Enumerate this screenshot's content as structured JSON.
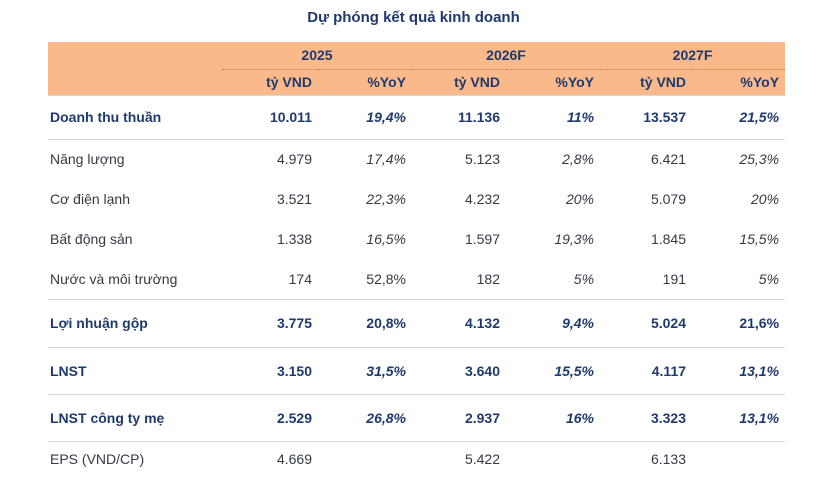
{
  "title": "Dự phóng kết quả kinh doanh",
  "header": {
    "years": [
      "2025",
      "2026F",
      "2027F"
    ],
    "units": [
      "tỷ VND",
      "%YoY",
      "tỷ VND",
      "%YoY",
      "tỷ VND",
      "%YoY"
    ]
  },
  "rows": [
    {
      "label": "Doanh thu thuần",
      "cells": [
        "10.011",
        "19,4%",
        "11.136",
        "11%",
        "13.537",
        "21,5%"
      ]
    },
    {
      "label": "Năng lượng",
      "cells": [
        "4.979",
        "17,4%",
        "5.123",
        "2,8%",
        "6.421",
        "25,3%"
      ]
    },
    {
      "label": "Cơ điện lạnh",
      "cells": [
        "3.521",
        "22,3%",
        "4.232",
        "20%",
        "5.079",
        "20%"
      ]
    },
    {
      "label": "Bất động sản",
      "cells": [
        "1.338",
        "16,5%",
        "1.597",
        "19,3%",
        "1.845",
        "15,5%"
      ]
    },
    {
      "label": "Nước và môi trường",
      "cells": [
        "174",
        "52,8%",
        "182",
        "5%",
        "191",
        "5%"
      ]
    },
    {
      "label": "Lợi nhuận gộp",
      "cells": [
        "3.775",
        "20,8%",
        "4.132",
        "9,4%",
        "5.024",
        "21,6%"
      ]
    },
    {
      "label": "LNST",
      "cells": [
        "3.150",
        "31,5%",
        "3.640",
        "15,5%",
        "4.117",
        "13,1%"
      ]
    },
    {
      "label": "LNST công ty mẹ",
      "cells": [
        "2.529",
        "26,8%",
        "2.937",
        "16%",
        "3.323",
        "13,1%"
      ]
    },
    {
      "label": "EPS (VND/CP)",
      "cells": [
        "4.669",
        "",
        "5.422",
        "",
        "6.133",
        ""
      ]
    }
  ]
}
